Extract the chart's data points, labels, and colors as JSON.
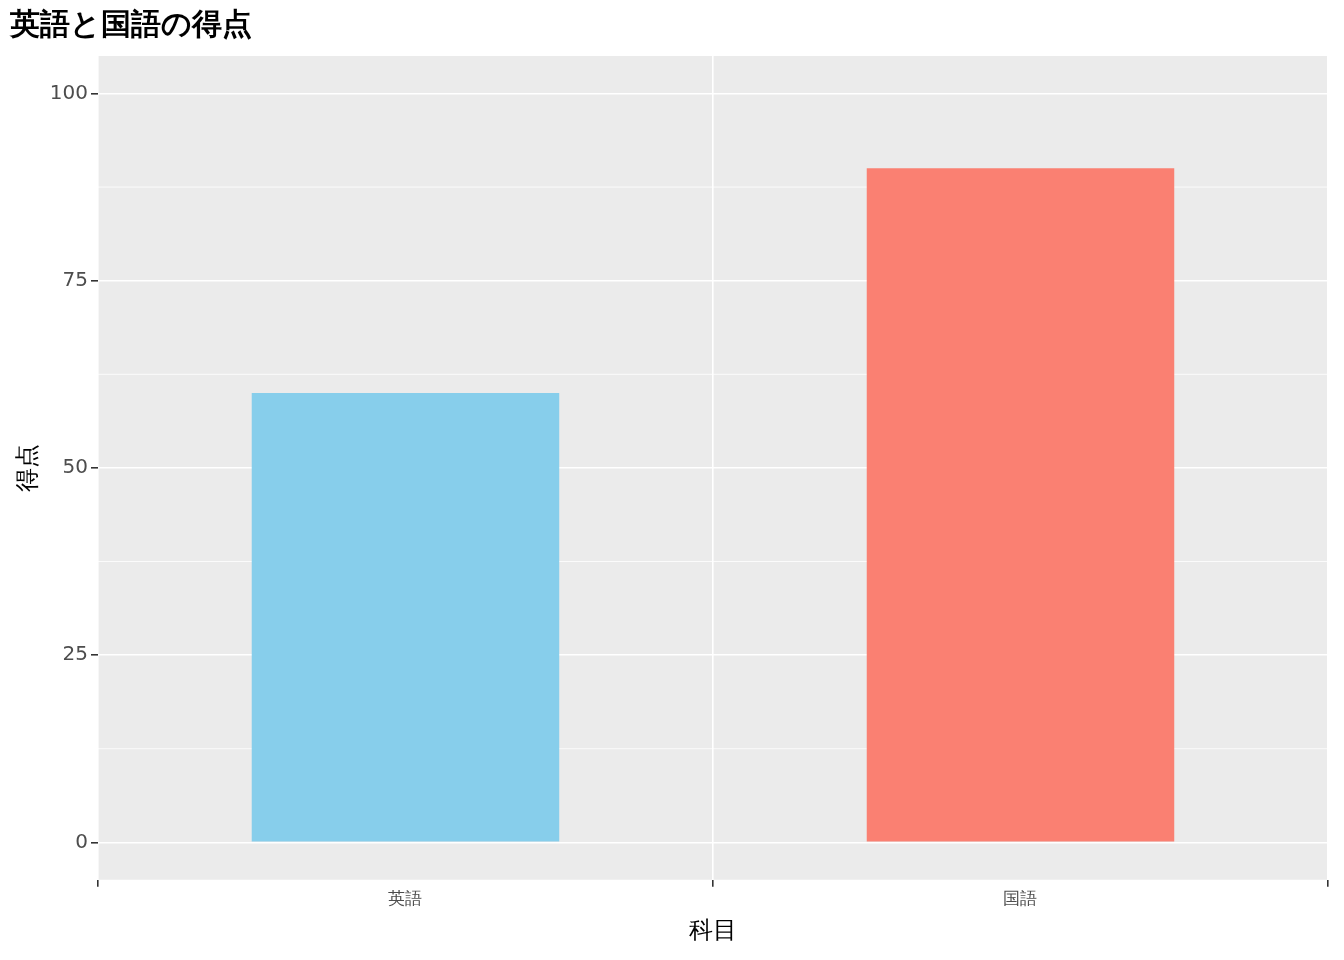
{
  "chart_data": {
    "type": "bar",
    "title": "英語と国語の得点",
    "xlabel": "科目",
    "ylabel": "得点",
    "categories": [
      "英語",
      "国語"
    ],
    "values": [
      60,
      90
    ],
    "colors": [
      "#87ceeb",
      "#fa8072"
    ],
    "ylim": [
      -5,
      105
    ],
    "yticks": [
      0,
      25,
      50,
      75,
      100
    ],
    "grid": true,
    "legend": false
  }
}
